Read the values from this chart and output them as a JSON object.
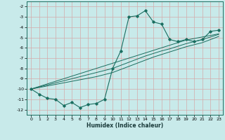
{
  "xlabel": "Humidex (Indice chaleur)",
  "background_color": "#c8eaea",
  "grid_color": "#d4aaaa",
  "line_color": "#1a6e60",
  "x": [
    0,
    1,
    2,
    3,
    4,
    5,
    6,
    7,
    8,
    9,
    10,
    11,
    12,
    13,
    14,
    15,
    16,
    17,
    18,
    19,
    20,
    21,
    22,
    23
  ],
  "y_main": [
    -10.0,
    -10.5,
    -10.9,
    -11.0,
    -11.6,
    -11.3,
    -11.8,
    -11.5,
    -11.4,
    -11.0,
    -8.0,
    -6.3,
    -3.0,
    -2.9,
    -2.4,
    -3.5,
    -3.7,
    -5.2,
    -5.4,
    -5.2,
    -5.4,
    -5.2,
    -4.4,
    -4.3
  ],
  "y_line1": [
    -10.0,
    -9.75,
    -9.5,
    -9.25,
    -9.0,
    -8.75,
    -8.5,
    -8.25,
    -8.0,
    -7.75,
    -7.5,
    -7.25,
    -7.0,
    -6.75,
    -6.5,
    -6.25,
    -6.0,
    -5.75,
    -5.5,
    -5.25,
    -5.1,
    -4.95,
    -4.8,
    -4.65
  ],
  "y_line2": [
    -10.0,
    -9.8,
    -9.6,
    -9.4,
    -9.2,
    -9.0,
    -8.8,
    -8.6,
    -8.4,
    -8.2,
    -8.0,
    -7.7,
    -7.4,
    -7.1,
    -6.8,
    -6.55,
    -6.3,
    -6.1,
    -5.85,
    -5.6,
    -5.4,
    -5.2,
    -4.95,
    -4.7
  ],
  "y_line3": [
    -10.0,
    -9.85,
    -9.7,
    -9.55,
    -9.4,
    -9.25,
    -9.1,
    -8.95,
    -8.8,
    -8.6,
    -8.4,
    -8.1,
    -7.8,
    -7.5,
    -7.2,
    -6.9,
    -6.65,
    -6.4,
    -6.15,
    -5.9,
    -5.7,
    -5.5,
    -5.2,
    -4.9
  ],
  "ylim": [
    -12.5,
    -1.5
  ],
  "xlim": [
    -0.5,
    23.5
  ],
  "yticks": [
    -12,
    -11,
    -10,
    -9,
    -8,
    -7,
    -6,
    -5,
    -4,
    -3,
    -2
  ],
  "xticks": [
    0,
    1,
    2,
    3,
    4,
    5,
    6,
    7,
    8,
    9,
    10,
    11,
    12,
    13,
    14,
    15,
    16,
    17,
    18,
    19,
    20,
    21,
    22,
    23
  ]
}
